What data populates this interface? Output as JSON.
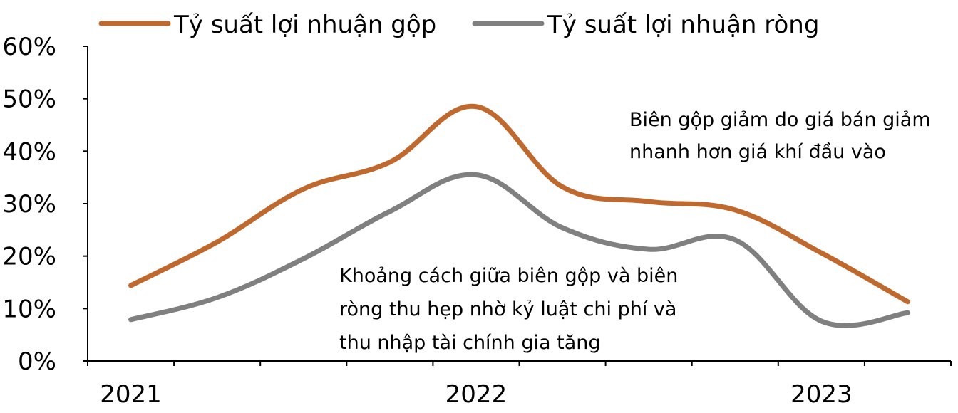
{
  "chart_data": {
    "type": "line",
    "title": "",
    "xlabel": "",
    "ylabel": "",
    "x_tick_labels": [
      "2021",
      "2022",
      "2023"
    ],
    "x_tick_positions": [
      0,
      4,
      8
    ],
    "points_count": 10,
    "ylim": [
      0,
      60
    ],
    "y_ticks": [
      0,
      10,
      20,
      30,
      40,
      50,
      60
    ],
    "y_tick_format": "percent",
    "grid": false,
    "legend_position": "top",
    "series": [
      {
        "name": "Tỷ suất lợi nhuận gộp",
        "color": "#C0692F",
        "values": [
          14.4,
          22.7,
          32.8,
          37.9,
          48.5,
          33.2,
          30.4,
          28.8,
          20.6,
          11.3
        ]
      },
      {
        "name": "Tỷ suất lợi nhuận ròng",
        "color": "#808080",
        "values": [
          7.9,
          12.1,
          19.5,
          28.5,
          35.5,
          25.4,
          21.3,
          23.1,
          7.6,
          9.2
        ]
      }
    ],
    "annotations": [
      {
        "lines": [
          "Biên gộp giảm do giá bán giảm",
          "nhanh hơn giá khí đầu vào"
        ]
      },
      {
        "lines": [
          "Khoảng cách giữa biên gộp và biên",
          "ròng thu hẹp nhờ kỷ luật chi phí và",
          "thu nhập tài chính gia tăng"
        ]
      }
    ]
  }
}
